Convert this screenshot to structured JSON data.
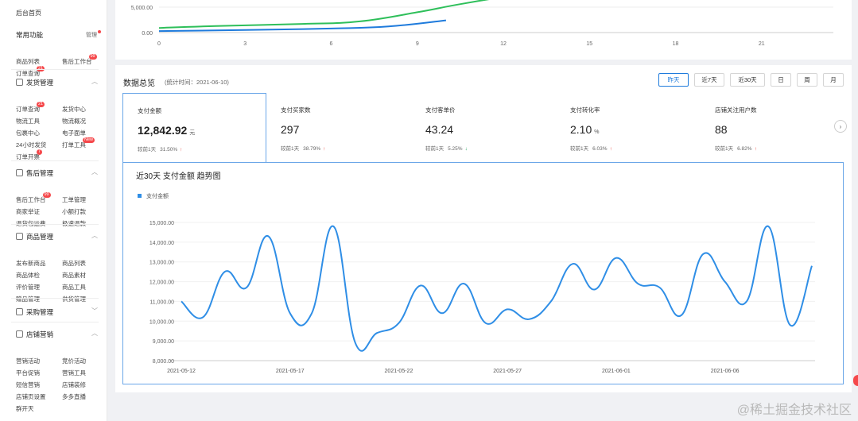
{
  "sidebar": {
    "home": "后台首页",
    "common": {
      "title": "常用功能",
      "edit": "管理",
      "items": [
        {
          "label": "商品列表"
        },
        {
          "label": "售后工作台",
          "badge": "99"
        },
        {
          "label": "订单查询",
          "badge": "21"
        }
      ]
    },
    "sections": [
      {
        "title": "发货管理",
        "icon": "truck-icon",
        "items": [
          {
            "label": "订单查询",
            "badge": "21"
          },
          {
            "label": "发货中心"
          },
          {
            "label": "物流工具"
          },
          {
            "label": "物流概况"
          },
          {
            "label": "包裹中心"
          },
          {
            "label": "电子面单"
          },
          {
            "label": "24小时发货"
          },
          {
            "label": "打单工具",
            "badge": "New"
          },
          {
            "label": "订单开票",
            "badge": "7"
          }
        ]
      },
      {
        "title": "售后管理",
        "icon": "shield-icon",
        "items": [
          {
            "label": "售后工作台",
            "badge": "99"
          },
          {
            "label": "工单管理"
          },
          {
            "label": "商家举证"
          },
          {
            "label": "小额打款"
          },
          {
            "label": "退货包运费"
          },
          {
            "label": "极速退款"
          }
        ]
      },
      {
        "title": "商品管理",
        "icon": "box-icon",
        "items": [
          {
            "label": "发布新商品"
          },
          {
            "label": "商品列表"
          },
          {
            "label": "商品体检"
          },
          {
            "label": "商品素材"
          },
          {
            "label": "评价管理"
          },
          {
            "label": "商品工具"
          },
          {
            "label": "赠品管理"
          },
          {
            "label": "供货管理"
          }
        ]
      },
      {
        "title": "采购管理",
        "icon": "cart-icon",
        "items": []
      },
      {
        "title": "店铺营销",
        "icon": "store-icon",
        "items": [
          {
            "label": "营销活动"
          },
          {
            "label": "竞价活动"
          },
          {
            "label": "平台促销"
          },
          {
            "label": "营销工具"
          },
          {
            "label": "短信营销"
          },
          {
            "label": "店铺装修"
          },
          {
            "label": "店铺页设置"
          },
          {
            "label": "多多直播"
          },
          {
            "label": "群开天"
          }
        ]
      }
    ]
  },
  "top_chart": {
    "y_ticks": [
      "5,000.00",
      "0.00"
    ],
    "x_ticks": [
      "0",
      "3",
      "6",
      "9",
      "12",
      "15",
      "18",
      "21"
    ],
    "series": [
      {
        "color": "#2ebf5a",
        "points": [
          [
            0,
            900
          ],
          [
            2,
            1300
          ],
          [
            5,
            1700
          ],
          [
            7,
            2200
          ],
          [
            9,
            4000
          ],
          [
            10.5,
            5600
          ],
          [
            12.5,
            7500
          ]
        ]
      },
      {
        "color": "#1f7bdc",
        "points": [
          [
            0,
            300
          ],
          [
            3,
            500
          ],
          [
            6,
            800
          ],
          [
            8,
            1200
          ],
          [
            10,
            2400
          ]
        ]
      }
    ]
  },
  "overview": {
    "title": "数据总览",
    "subtitle": "(统计时间：2021-06-10)",
    "buttons": [
      {
        "label": "昨天",
        "active": true
      },
      {
        "label": "近7天"
      },
      {
        "label": "近30天"
      },
      {
        "label": "日"
      },
      {
        "label": "周"
      },
      {
        "label": "月"
      }
    ],
    "compare_label": "较前1天",
    "metrics": [
      {
        "label": "支付金额",
        "value": "12,842.92",
        "unit": "元",
        "change": "31.50%",
        "dir": "up",
        "active": true
      },
      {
        "label": "支付买家数",
        "value": "297",
        "unit": "",
        "change": "38.79%",
        "dir": "up"
      },
      {
        "label": "支付客单价",
        "value": "43.24",
        "unit": "",
        "change": "5.25%",
        "dir": "down"
      },
      {
        "label": "支付转化率",
        "value": "2.10",
        "unit": "%",
        "change": "6.03%",
        "dir": "up"
      },
      {
        "label": "店铺关注用户数",
        "value": "88",
        "unit": "",
        "change": "6.82%",
        "dir": "up"
      }
    ],
    "up_arrow": "↑",
    "down_arrow": "↓",
    "next_icon": "›"
  },
  "chart_data": {
    "type": "line",
    "title": "近30天 支付金额 趋势图",
    "legend": "支付金额",
    "legend_position": "top-left",
    "color": "#2f8ee6",
    "ylim": [
      8000,
      15000
    ],
    "y_ticks": [
      "8,000.00",
      "9,000.00",
      "10,000.00",
      "11,000.00",
      "12,000.00",
      "13,000.00",
      "14,000.00",
      "15,000.00"
    ],
    "x_ticks": [
      "2021-05-12",
      "2021-05-17",
      "2021-05-22",
      "2021-05-27",
      "2021-06-01",
      "2021-06-06"
    ],
    "x": [
      "2021-05-12",
      "2021-05-13",
      "2021-05-14",
      "2021-05-15",
      "2021-05-16",
      "2021-05-17",
      "2021-05-18",
      "2021-05-19",
      "2021-05-20",
      "2021-05-21",
      "2021-05-22",
      "2021-05-23",
      "2021-05-24",
      "2021-05-25",
      "2021-05-26",
      "2021-05-27",
      "2021-05-28",
      "2021-05-29",
      "2021-05-30",
      "2021-05-31",
      "2021-06-01",
      "2021-06-02",
      "2021-06-03",
      "2021-06-04",
      "2021-06-05",
      "2021-06-06",
      "2021-06-07",
      "2021-06-08",
      "2021-06-09",
      "2021-06-10"
    ],
    "values": [
      11000,
      10200,
      12500,
      11700,
      14300,
      10400,
      10400,
      14800,
      8900,
      9400,
      9900,
      11800,
      10400,
      11900,
      9900,
      10600,
      10100,
      11000,
      12900,
      11600,
      13200,
      11900,
      11700,
      10300,
      13400,
      12000,
      11000,
      14800,
      9800,
      12800
    ],
    "grid": true
  },
  "watermark": "@稀土掘金技术社区"
}
